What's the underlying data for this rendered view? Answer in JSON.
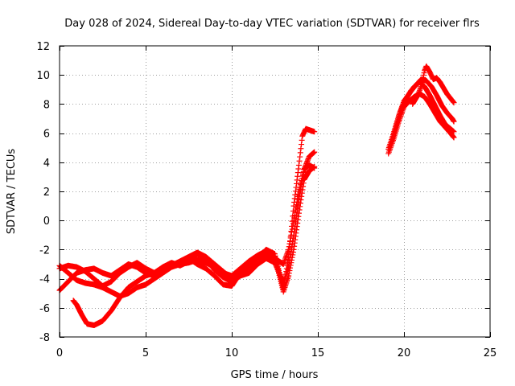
{
  "chart_data": {
    "type": "scatter",
    "title": "Day 028 of 2024, Sidereal Day-to-day VTEC variation (SDTVAR) for receiver flrs",
    "xlabel": "GPS time / hours",
    "ylabel": "SDTVAR / TECUs",
    "xlim": [
      0,
      25
    ],
    "ylim": [
      -8,
      12
    ],
    "x_ticks": [
      0,
      5,
      10,
      15,
      20,
      25
    ],
    "y_ticks": [
      -8,
      -6,
      -4,
      -2,
      0,
      2,
      4,
      6,
      8,
      10,
      12
    ],
    "grid": true,
    "marker": "+",
    "series_color": "#ff0000",
    "series": [
      {
        "name": "track-1",
        "points": [
          [
            0.0,
            -3.1
          ],
          [
            0.5,
            -3.6
          ],
          [
            1.0,
            -4.1
          ],
          [
            1.5,
            -4.3
          ],
          [
            2.0,
            -4.4
          ],
          [
            2.5,
            -4.6
          ],
          [
            3.0,
            -4.9
          ],
          [
            3.5,
            -5.2
          ],
          [
            4.0,
            -5.0
          ],
          [
            4.5,
            -4.6
          ],
          [
            5.0,
            -4.4
          ],
          [
            5.5,
            -4.0
          ],
          [
            6.0,
            -3.6
          ],
          [
            6.5,
            -3.2
          ],
          [
            7.0,
            -3.0
          ],
          [
            7.5,
            -2.9
          ],
          [
            8.0,
            -2.7
          ],
          [
            8.5,
            -2.9
          ],
          [
            9.0,
            -3.2
          ],
          [
            9.5,
            -3.6
          ],
          [
            10.0,
            -3.8
          ],
          [
            10.5,
            -3.3
          ],
          [
            11.0,
            -2.8
          ],
          [
            11.5,
            -2.4
          ],
          [
            12.0,
            -2.1
          ],
          [
            12.5,
            -2.6
          ],
          [
            13.0,
            -3.0
          ],
          [
            13.3,
            -2.0
          ],
          [
            13.6,
            0.0
          ],
          [
            13.9,
            2.0
          ],
          [
            14.2,
            3.5
          ],
          [
            14.5,
            3.8
          ],
          [
            14.8,
            3.6
          ]
        ]
      },
      {
        "name": "track-2",
        "points": [
          [
            0.0,
            -4.8
          ],
          [
            0.5,
            -4.2
          ],
          [
            1.0,
            -3.6
          ],
          [
            1.5,
            -3.4
          ],
          [
            2.0,
            -3.3
          ],
          [
            2.5,
            -3.6
          ],
          [
            3.0,
            -3.8
          ],
          [
            3.5,
            -3.4
          ],
          [
            4.0,
            -3.0
          ],
          [
            4.5,
            -3.2
          ],
          [
            5.0,
            -3.6
          ],
          [
            5.5,
            -3.8
          ],
          [
            6.0,
            -3.5
          ],
          [
            6.5,
            -3.1
          ],
          [
            7.0,
            -2.8
          ],
          [
            7.5,
            -2.5
          ],
          [
            8.0,
            -2.2
          ],
          [
            8.5,
            -2.5
          ],
          [
            9.0,
            -3.0
          ],
          [
            9.5,
            -3.5
          ],
          [
            10.0,
            -4.0
          ],
          [
            10.5,
            -3.7
          ],
          [
            11.0,
            -3.2
          ],
          [
            11.5,
            -2.6
          ],
          [
            12.0,
            -2.0
          ],
          [
            12.5,
            -2.3
          ],
          [
            13.0,
            -4.7
          ],
          [
            13.3,
            -2.5
          ],
          [
            13.6,
            1.0
          ],
          [
            13.9,
            3.8
          ],
          [
            14.1,
            5.8
          ],
          [
            14.3,
            6.3
          ],
          [
            14.8,
            6.1
          ]
        ]
      },
      {
        "name": "track-3",
        "points": [
          [
            0.0,
            -3.3
          ],
          [
            0.5,
            -3.1
          ],
          [
            1.0,
            -3.2
          ],
          [
            1.5,
            -3.5
          ],
          [
            2.0,
            -4.0
          ],
          [
            2.5,
            -4.5
          ],
          [
            3.0,
            -4.2
          ],
          [
            3.5,
            -3.6
          ],
          [
            4.0,
            -3.2
          ],
          [
            4.5,
            -2.9
          ],
          [
            5.0,
            -3.3
          ],
          [
            5.5,
            -3.6
          ],
          [
            6.0,
            -3.2
          ],
          [
            6.5,
            -2.9
          ],
          [
            7.0,
            -3.1
          ],
          [
            7.5,
            -2.8
          ],
          [
            8.0,
            -2.3
          ],
          [
            8.5,
            -2.6
          ],
          [
            9.0,
            -3.4
          ],
          [
            9.5,
            -3.9
          ],
          [
            10.0,
            -4.2
          ],
          [
            10.5,
            -3.8
          ],
          [
            11.0,
            -3.6
          ],
          [
            11.5,
            -3.0
          ],
          [
            12.0,
            -2.6
          ],
          [
            12.5,
            -2.9
          ],
          [
            13.0,
            -4.3
          ],
          [
            13.3,
            -3.2
          ],
          [
            13.6,
            -1.0
          ],
          [
            13.9,
            1.5
          ],
          [
            14.2,
            3.5
          ],
          [
            14.5,
            4.4
          ],
          [
            14.8,
            4.7
          ]
        ]
      },
      {
        "name": "track-4",
        "points": [
          [
            0.8,
            -5.5
          ],
          [
            1.0,
            -5.8
          ],
          [
            1.3,
            -6.5
          ],
          [
            1.6,
            -7.1
          ],
          [
            2.0,
            -7.2
          ],
          [
            2.5,
            -6.9
          ],
          [
            3.0,
            -6.2
          ],
          [
            3.5,
            -5.3
          ],
          [
            4.0,
            -4.6
          ],
          [
            4.5,
            -4.2
          ],
          [
            5.0,
            -3.8
          ],
          [
            5.5,
            -3.6
          ],
          [
            6.0,
            -3.3
          ],
          [
            6.5,
            -3.1
          ],
          [
            7.0,
            -2.9
          ],
          [
            7.5,
            -2.6
          ],
          [
            8.0,
            -3.0
          ],
          [
            8.5,
            -3.3
          ],
          [
            9.0,
            -3.8
          ],
          [
            9.5,
            -4.4
          ],
          [
            10.0,
            -4.5
          ],
          [
            10.5,
            -3.6
          ],
          [
            11.0,
            -3.0
          ],
          [
            11.5,
            -2.6
          ],
          [
            12.0,
            -2.3
          ],
          [
            12.5,
            -2.5
          ],
          [
            13.0,
            -4.9
          ],
          [
            13.3,
            -3.8
          ],
          [
            13.6,
            -2.0
          ],
          [
            13.9,
            0.5
          ],
          [
            14.2,
            2.8
          ],
          [
            14.5,
            3.4
          ],
          [
            14.8,
            3.7
          ]
        ]
      },
      {
        "name": "track-5",
        "points": [
          [
            19.1,
            4.6
          ],
          [
            19.4,
            5.6
          ],
          [
            19.7,
            6.8
          ],
          [
            20.0,
            7.8
          ],
          [
            20.3,
            8.2
          ],
          [
            20.6,
            8.5
          ],
          [
            20.9,
            8.7
          ],
          [
            21.2,
            8.5
          ],
          [
            21.5,
            8.0
          ],
          [
            21.8,
            7.4
          ],
          [
            22.1,
            6.8
          ],
          [
            22.4,
            6.4
          ],
          [
            22.7,
            6.0
          ],
          [
            22.9,
            5.7
          ]
        ]
      },
      {
        "name": "track-6",
        "points": [
          [
            19.1,
            4.9
          ],
          [
            19.4,
            6.0
          ],
          [
            19.7,
            7.2
          ],
          [
            20.0,
            8.2
          ],
          [
            20.3,
            8.7
          ],
          [
            20.6,
            9.2
          ],
          [
            20.9,
            9.5
          ],
          [
            21.2,
            9.2
          ],
          [
            21.5,
            8.6
          ],
          [
            21.8,
            7.9
          ],
          [
            22.1,
            7.2
          ],
          [
            22.4,
            6.6
          ],
          [
            22.7,
            6.3
          ],
          [
            22.9,
            6.1
          ]
        ]
      },
      {
        "name": "track-7",
        "points": [
          [
            19.2,
            5.1
          ],
          [
            19.5,
            6.3
          ],
          [
            19.8,
            7.5
          ],
          [
            20.1,
            8.3
          ],
          [
            20.4,
            8.9
          ],
          [
            20.7,
            9.3
          ],
          [
            21.0,
            9.7
          ],
          [
            21.3,
            9.6
          ],
          [
            21.6,
            9.2
          ],
          [
            21.9,
            8.6
          ],
          [
            22.2,
            7.9
          ],
          [
            22.5,
            7.4
          ],
          [
            22.8,
            7.0
          ],
          [
            22.9,
            6.8
          ]
        ]
      },
      {
        "name": "track-8",
        "points": [
          [
            20.5,
            8.0
          ],
          [
            20.8,
            8.6
          ],
          [
            21.0,
            9.2
          ],
          [
            21.2,
            10.3
          ],
          [
            21.3,
            10.6
          ],
          [
            21.5,
            10.2
          ],
          [
            21.7,
            9.7
          ],
          [
            21.9,
            9.8
          ],
          [
            22.1,
            9.5
          ],
          [
            22.3,
            9.1
          ],
          [
            22.5,
            8.7
          ],
          [
            22.7,
            8.4
          ],
          [
            22.9,
            8.1
          ]
        ]
      }
    ]
  }
}
